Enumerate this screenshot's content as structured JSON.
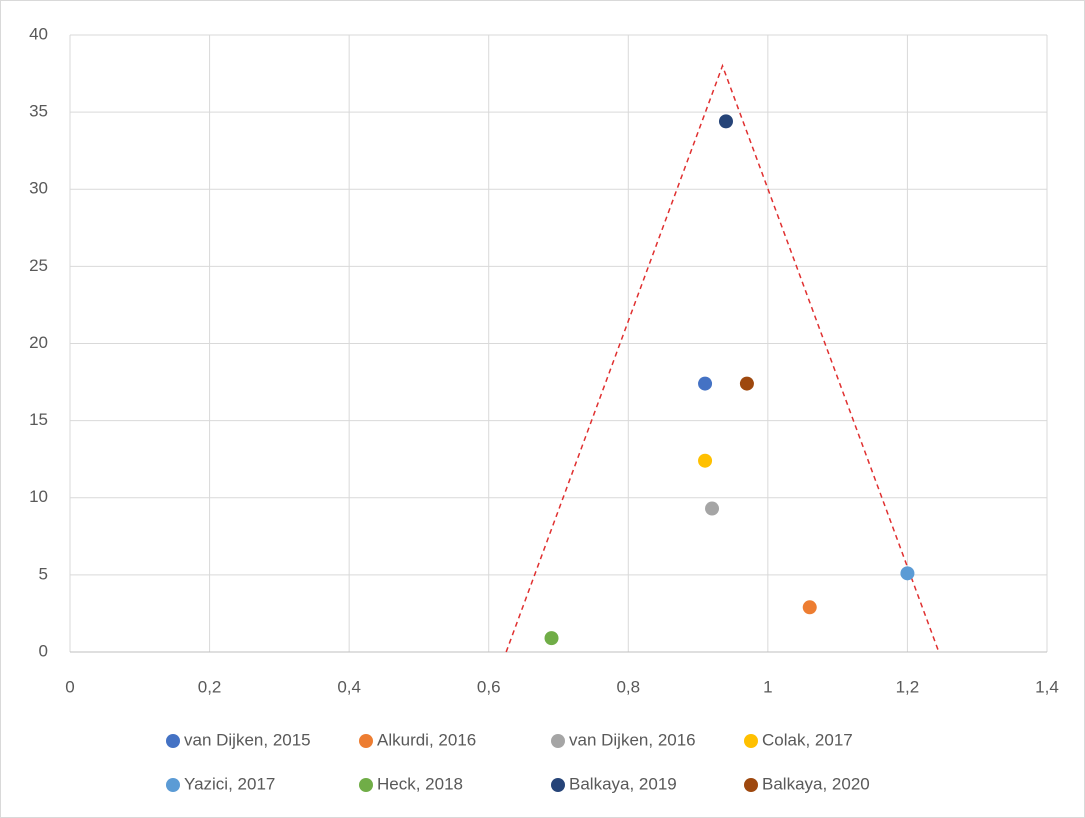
{
  "chart_data": {
    "type": "scatter",
    "xlim": [
      0,
      1.4
    ],
    "xticks": [
      0,
      {
        "value": 0.2,
        "label": "0,2"
      },
      {
        "value": 0.4,
        "label": "0,4"
      },
      {
        "value": 0.6,
        "label": "0,6"
      },
      {
        "value": 0.8,
        "label": "0,8"
      },
      1,
      {
        "value": 1.2,
        "label": "1,2"
      },
      {
        "value": 1.4,
        "label": "1,4"
      }
    ],
    "ylim": [
      0,
      40
    ],
    "yticks": [
      0,
      5,
      10,
      15,
      20,
      25,
      30,
      35,
      40
    ],
    "grid": true,
    "legend": "bottom",
    "series": [
      {
        "name": "van Dijken, 2015",
        "color": "#4472c4",
        "x": [
          0.91
        ],
        "values": [
          17.4
        ]
      },
      {
        "name": "Alkurdi, 2016",
        "color": "#ed7d31",
        "x": [
          1.06
        ],
        "values": [
          2.9
        ]
      },
      {
        "name": "van Dijken, 2016",
        "color": "#a5a5a5",
        "x": [
          0.92
        ],
        "values": [
          9.3
        ]
      },
      {
        "name": "Colak, 2017",
        "color": "#ffc000",
        "x": [
          0.91
        ],
        "values": [
          12.4
        ]
      },
      {
        "name": "Yazici, 2017",
        "color": "#5b9bd5",
        "x": [
          1.2
        ],
        "values": [
          5.1
        ]
      },
      {
        "name": "Heck, 2018",
        "color": "#70ad47",
        "x": [
          0.69
        ],
        "values": [
          0.9
        ]
      },
      {
        "name": "Balkaya, 2019",
        "color": "#264478",
        "x": [
          0.94
        ],
        "values": [
          34.4
        ]
      },
      {
        "name": "Balkaya, 2020",
        "color": "#9e480e",
        "x": [
          0.97
        ],
        "values": [
          17.4
        ]
      }
    ],
    "funnel": {
      "color": "#e03030",
      "x": [
        0.625,
        0.935,
        1.245
      ],
      "values": [
        0,
        38,
        0
      ]
    }
  }
}
